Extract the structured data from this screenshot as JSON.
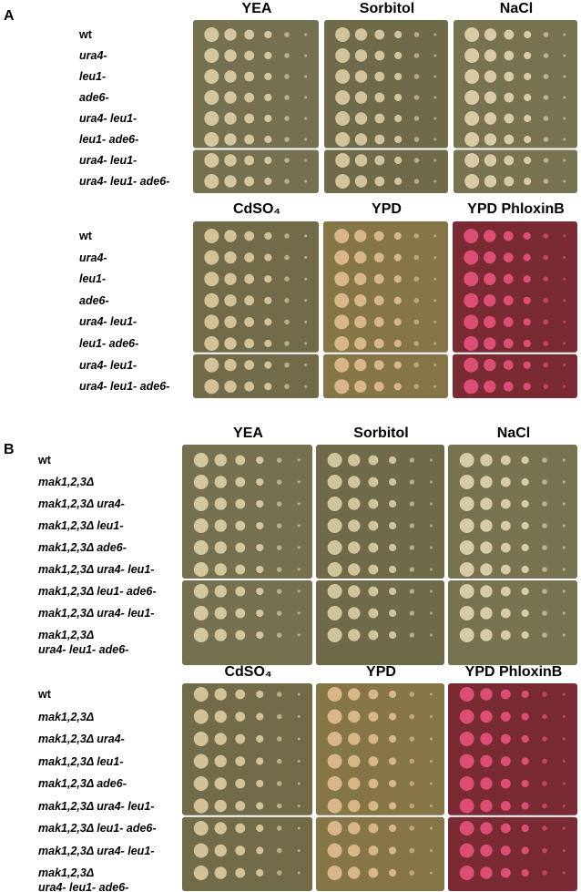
{
  "panels": [
    {
      "label": "A",
      "blocks": [
        {
          "conditions": [
            "YEA",
            "Sorbitol",
            "NaCl"
          ],
          "strains": [
            "wt",
            "ura4-",
            "leu1-",
            "ade6-",
            "ura4- leu1-",
            "leu1- ade6-",
            "ura4- leu1-",
            "ura4- leu1- ade6-"
          ]
        },
        {
          "conditions": [
            "CdSO₄",
            "YPD",
            "YPD PhloxinB"
          ],
          "strains": [
            "wt",
            "ura4-",
            "leu1-",
            "ade6-",
            "ura4- leu1-",
            "leu1- ade6-",
            "ura4- leu1-",
            "ura4- leu1- ade6-"
          ]
        }
      ]
    },
    {
      "label": "B",
      "blocks": [
        {
          "conditions": [
            "YEA",
            "Sorbitol",
            "NaCl"
          ],
          "strains": [
            "wt",
            "mak1,2,3Δ",
            "mak1,2,3Δ ura4-",
            "mak1,2,3Δ leu1-",
            "mak1,2,3Δ ade6-",
            "mak1,2,3Δ ura4- leu1-",
            "mak1,2,3Δ leu1- ade6-",
            "mak1,2,3Δ ura4- leu1-",
            "mak1,2,3Δ\nura4- leu1- ade6-"
          ]
        },
        {
          "conditions": [
            "CdSO₄",
            "YPD",
            "YPD PhloxinB"
          ],
          "strains": [
            "wt",
            "mak1,2,3Δ",
            "mak1,2,3Δ ura4-",
            "mak1,2,3Δ leu1-",
            "mak1,2,3Δ ade6-",
            "mak1,2,3Δ ura4- leu1-",
            "mak1,2,3Δ leu1- ade6-",
            "mak1,2,3Δ ura4- leu1-",
            "mak1,2,3Δ\nura4- leu1- ade6-"
          ]
        }
      ]
    }
  ]
}
